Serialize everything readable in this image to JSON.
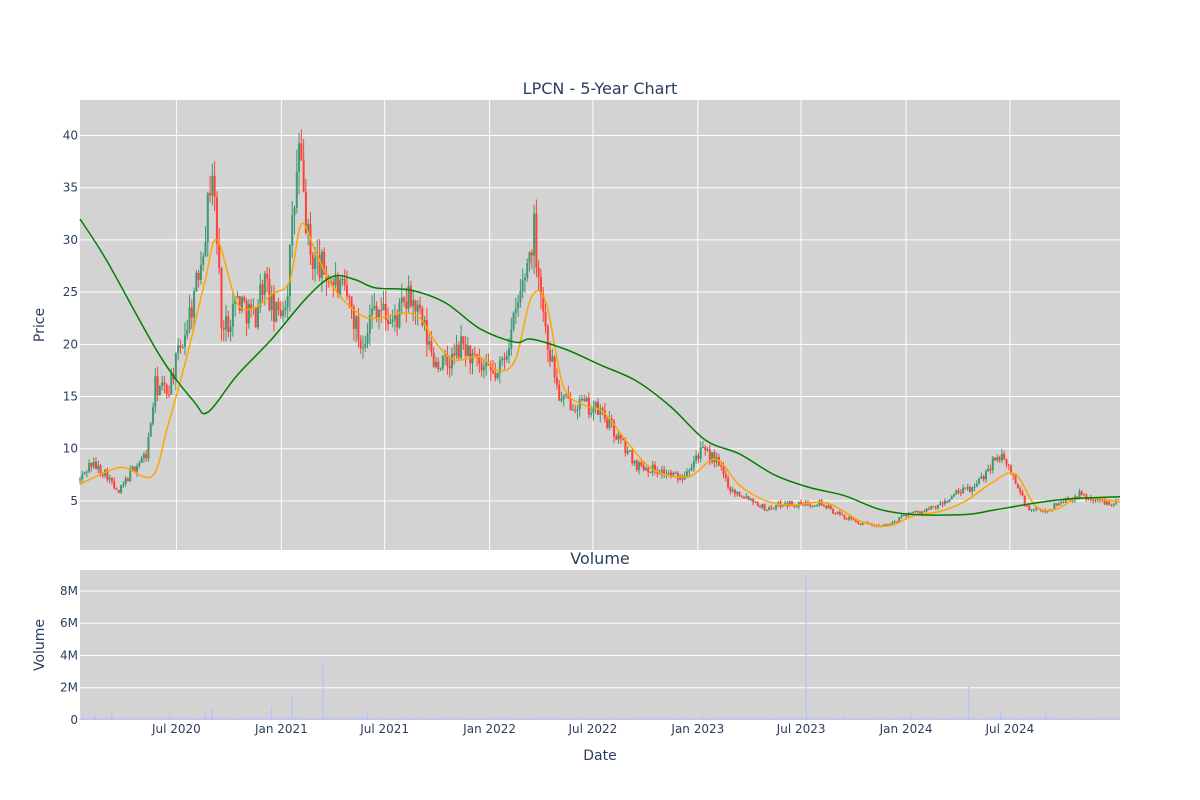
{
  "chart_data": [
    {
      "type": "candlestick",
      "title": "LPCN - 5-Year Chart",
      "xlabel": "",
      "ylabel": "Price",
      "x_range": [
        "2020-01-14",
        "2025-01-10"
      ],
      "ylim": [
        0.3,
        43.4
      ],
      "yticks": [
        5,
        10,
        15,
        20,
        25,
        30,
        35,
        40
      ],
      "grid": true,
      "colors": {
        "plot_bg": "#d3d3d3",
        "grid": "#ffffff",
        "up": "#3d9970",
        "down": "#ff4136",
        "ma_short": "#ffa500",
        "ma_long": "#008000",
        "text": "#2a3f5f"
      },
      "price_keypoints": [
        [
          "2020-01-14",
          7.0
        ],
        [
          "2020-02-01",
          8.6
        ],
        [
          "2020-03-01",
          7.6
        ],
        [
          "2020-03-20",
          5.6
        ],
        [
          "2020-04-15",
          8.0
        ],
        [
          "2020-05-10",
          9.5
        ],
        [
          "2020-05-25",
          16.0
        ],
        [
          "2020-06-15",
          15.5
        ],
        [
          "2020-07-10",
          20.0
        ],
        [
          "2020-08-05",
          25.5
        ],
        [
          "2020-08-25",
          33.0
        ],
        [
          "2020-09-01",
          37.5
        ],
        [
          "2020-09-10",
          30.0
        ],
        [
          "2020-09-20",
          21.0
        ],
        [
          "2020-10-15",
          24.5
        ],
        [
          "2020-11-15",
          22.5
        ],
        [
          "2020-12-01",
          26.5
        ],
        [
          "2020-12-20",
          22.5
        ],
        [
          "2021-01-10",
          24.5
        ],
        [
          "2021-01-20",
          31.0
        ],
        [
          "2021-02-01",
          38.5
        ],
        [
          "2021-02-10",
          33.5
        ],
        [
          "2021-02-20",
          28.5
        ],
        [
          "2021-03-10",
          27.5
        ],
        [
          "2021-04-01",
          26.0
        ],
        [
          "2021-05-01",
          24.0
        ],
        [
          "2021-05-20",
          20.0
        ],
        [
          "2021-06-15",
          24.0
        ],
        [
          "2021-07-15",
          22.0
        ],
        [
          "2021-08-15",
          24.5
        ],
        [
          "2021-09-01",
          22.5
        ],
        [
          "2021-09-25",
          18.5
        ],
        [
          "2021-10-20",
          18.0
        ],
        [
          "2021-11-15",
          20.0
        ],
        [
          "2021-12-15",
          17.5
        ],
        [
          "2022-01-15",
          17.0
        ],
        [
          "2022-02-10",
          21.5
        ],
        [
          "2022-03-01",
          26.0
        ],
        [
          "2022-03-20",
          31.0
        ],
        [
          "2022-04-10",
          21.0
        ],
        [
          "2022-05-05",
          14.5
        ],
        [
          "2022-06-01",
          14.5
        ],
        [
          "2022-07-15",
          13.5
        ],
        [
          "2022-08-15",
          11.0
        ],
        [
          "2022-09-15",
          8.5
        ],
        [
          "2022-10-20",
          8.0
        ],
        [
          "2022-12-01",
          7.2
        ],
        [
          "2023-01-05",
          9.8
        ],
        [
          "2023-02-01",
          9.0
        ],
        [
          "2023-03-01",
          6.0
        ],
        [
          "2023-04-01",
          5.3
        ],
        [
          "2023-05-01",
          4.2
        ],
        [
          "2023-06-01",
          4.8
        ],
        [
          "2023-07-01",
          4.6
        ],
        [
          "2023-08-01",
          4.9
        ],
        [
          "2023-09-01",
          3.8
        ],
        [
          "2023-10-15",
          2.8
        ],
        [
          "2023-11-30",
          2.6
        ],
        [
          "2024-01-01",
          3.8
        ],
        [
          "2024-02-01",
          4.0
        ],
        [
          "2024-03-01",
          4.6
        ],
        [
          "2024-04-01",
          5.8
        ],
        [
          "2024-05-01",
          6.3
        ],
        [
          "2024-06-10",
          9.5
        ],
        [
          "2024-07-01",
          8.0
        ],
        [
          "2024-08-01",
          4.2
        ],
        [
          "2024-09-01",
          4.0
        ],
        [
          "2024-10-01",
          5.0
        ],
        [
          "2024-11-01",
          5.6
        ],
        [
          "2024-12-01",
          5.0
        ],
        [
          "2025-01-10",
          4.8
        ]
      ],
      "ma_short_keypoints": [
        [
          "2020-01-14",
          6.6
        ],
        [
          "2020-03-01",
          7.8
        ],
        [
          "2020-04-01",
          8.2
        ],
        [
          "2020-05-20",
          7.4
        ],
        [
          "2020-06-15",
          12.0
        ],
        [
          "2020-07-20",
          19.0
        ],
        [
          "2020-08-20",
          26.0
        ],
        [
          "2020-09-10",
          30.0
        ],
        [
          "2020-10-15",
          24.0
        ],
        [
          "2020-11-15",
          23.5
        ],
        [
          "2020-12-15",
          24.8
        ],
        [
          "2021-01-15",
          26.0
        ],
        [
          "2021-02-05",
          31.5
        ],
        [
          "2021-03-01",
          29.0
        ],
        [
          "2021-04-01",
          25.5
        ],
        [
          "2021-05-15",
          23.0
        ],
        [
          "2021-06-15",
          22.5
        ],
        [
          "2021-08-01",
          23.0
        ],
        [
          "2021-09-01",
          22.5
        ],
        [
          "2021-10-01",
          20.0
        ],
        [
          "2021-11-01",
          18.5
        ],
        [
          "2021-12-15",
          18.8
        ],
        [
          "2022-01-15",
          17.5
        ],
        [
          "2022-02-15",
          18.5
        ],
        [
          "2022-03-15",
          24.5
        ],
        [
          "2022-04-10",
          24.0
        ],
        [
          "2022-05-10",
          16.0
        ],
        [
          "2022-06-15",
          14.2
        ],
        [
          "2022-07-20",
          13.5
        ],
        [
          "2022-09-01",
          10.5
        ],
        [
          "2022-10-15",
          8.0
        ],
        [
          "2022-12-15",
          7.3
        ],
        [
          "2023-02-01",
          9.0
        ],
        [
          "2023-03-15",
          6.5
        ],
        [
          "2023-05-01",
          5.0
        ],
        [
          "2023-06-15",
          4.6
        ],
        [
          "2023-08-15",
          4.8
        ],
        [
          "2023-10-15",
          3.0
        ],
        [
          "2023-12-01",
          2.6
        ],
        [
          "2024-01-15",
          3.6
        ],
        [
          "2024-03-01",
          4.0
        ],
        [
          "2024-04-15",
          5.0
        ],
        [
          "2024-06-01",
          6.8
        ],
        [
          "2024-07-10",
          7.6
        ],
        [
          "2024-08-15",
          4.5
        ],
        [
          "2024-09-20",
          4.2
        ],
        [
          "2024-11-01",
          5.3
        ],
        [
          "2025-01-10",
          4.9
        ]
      ],
      "ma_long_keypoints": [
        [
          "2020-01-14",
          32.0
        ],
        [
          "2020-03-01",
          28.0
        ],
        [
          "2020-06-01",
          19.0
        ],
        [
          "2020-08-01",
          14.5
        ],
        [
          "2020-08-25",
          13.5
        ],
        [
          "2020-10-15",
          17.0
        ],
        [
          "2020-12-15",
          20.5
        ],
        [
          "2021-02-15",
          24.5
        ],
        [
          "2021-04-01",
          26.5
        ],
        [
          "2021-05-10",
          26.2
        ],
        [
          "2021-06-15",
          25.4
        ],
        [
          "2021-08-15",
          25.2
        ],
        [
          "2021-10-15",
          24.0
        ],
        [
          "2021-12-15",
          21.5
        ],
        [
          "2022-02-15",
          20.2
        ],
        [
          "2022-03-15",
          20.5
        ],
        [
          "2022-05-15",
          19.5
        ],
        [
          "2022-07-15",
          18.0
        ],
        [
          "2022-09-15",
          16.5
        ],
        [
          "2022-11-15",
          14.0
        ],
        [
          "2023-01-15",
          10.8
        ],
        [
          "2023-03-15",
          9.5
        ],
        [
          "2023-05-15",
          7.5
        ],
        [
          "2023-07-15",
          6.3
        ],
        [
          "2023-09-15",
          5.5
        ],
        [
          "2023-11-15",
          4.2
        ],
        [
          "2024-01-15",
          3.7
        ],
        [
          "2024-04-15",
          3.7
        ],
        [
          "2024-06-01",
          4.1
        ],
        [
          "2024-08-15",
          4.8
        ],
        [
          "2024-10-15",
          5.2
        ],
        [
          "2025-01-10",
          5.4
        ]
      ],
      "xticks": [
        {
          "date": "2020-07-01",
          "label": "Jul 2020"
        },
        {
          "date": "2021-01-01",
          "label": "Jan 2021"
        },
        {
          "date": "2021-07-01",
          "label": "Jul 2021"
        },
        {
          "date": "2022-01-01",
          "label": "Jan 2022"
        },
        {
          "date": "2022-07-01",
          "label": "Jul 2022"
        },
        {
          "date": "2023-01-01",
          "label": "Jan 2023"
        },
        {
          "date": "2023-07-01",
          "label": "Jul 2023"
        },
        {
          "date": "2024-01-01",
          "label": "Jan 2024"
        },
        {
          "date": "2024-07-01",
          "label": "Jul 2024"
        }
      ]
    },
    {
      "type": "bar",
      "title": "Volume",
      "xlabel": "Date",
      "ylabel": "Volume",
      "ylim": [
        0,
        9300000
      ],
      "yticks": [
        {
          "value": 0,
          "label": "0"
        },
        {
          "value": 2000000,
          "label": "2M"
        },
        {
          "value": 4000000,
          "label": "4M"
        },
        {
          "value": 6000000,
          "label": "6M"
        },
        {
          "value": 8000000,
          "label": "8M"
        }
      ],
      "colors": {
        "bar": "#b8bfff"
      },
      "baseline_volume": 150000,
      "spikes": [
        [
          "2020-01-20",
          350000
        ],
        [
          "2020-02-10",
          300000
        ],
        [
          "2020-03-10",
          500000
        ],
        [
          "2020-06-20",
          350000
        ],
        [
          "2020-08-20",
          500000
        ],
        [
          "2020-09-01",
          700000
        ],
        [
          "2020-12-15",
          800000
        ],
        [
          "2021-01-20",
          1500000
        ],
        [
          "2021-03-15",
          3500000
        ],
        [
          "2021-06-01",
          500000
        ],
        [
          "2022-04-01",
          300000
        ],
        [
          "2023-01-10",
          250000
        ],
        [
          "2023-06-01",
          250000
        ],
        [
          "2023-07-10",
          9000000
        ],
        [
          "2023-09-15",
          300000
        ],
        [
          "2024-01-10",
          300000
        ],
        [
          "2024-04-20",
          2100000
        ],
        [
          "2024-06-15",
          600000
        ],
        [
          "2024-09-01",
          400000
        ]
      ]
    }
  ]
}
